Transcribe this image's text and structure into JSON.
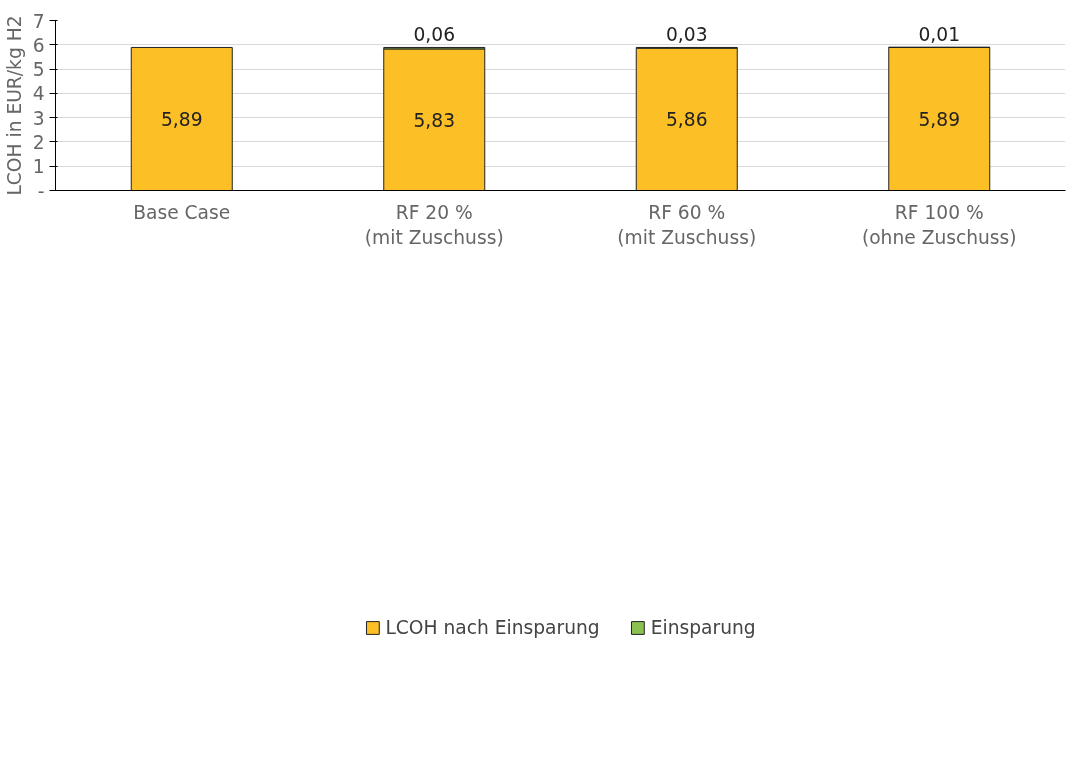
{
  "chart_data": {
    "type": "bar",
    "stacked": true,
    "ylabel": "LCOH in EUR/kg H2",
    "categories": [
      "Base Case",
      "RF 20 %\n(mit Zuschuss)",
      "RF 60 %\n(mit Zuschuss)",
      "RF 100 %\n(ohne Zuschuss)"
    ],
    "series": [
      {
        "name": "LCOH nach Einsparung",
        "color": "#fdbf26",
        "values": [
          5.89,
          5.83,
          5.86,
          5.89
        ],
        "value_labels": [
          "5,89",
          "5,83",
          "5,86",
          "5,89"
        ]
      },
      {
        "name": "Einsparung",
        "color": "#8cc152",
        "values": [
          null,
          0.06,
          0.03,
          0.01
        ],
        "value_labels": [
          null,
          "0,06",
          "0,03",
          "0,01"
        ]
      }
    ],
    "ylim": [
      0,
      7
    ],
    "yticks": [
      {
        "value": 0,
        "label": "-"
      },
      1,
      2,
      3,
      4,
      5,
      6,
      7
    ],
    "grid": "y",
    "legend": "bottom"
  }
}
